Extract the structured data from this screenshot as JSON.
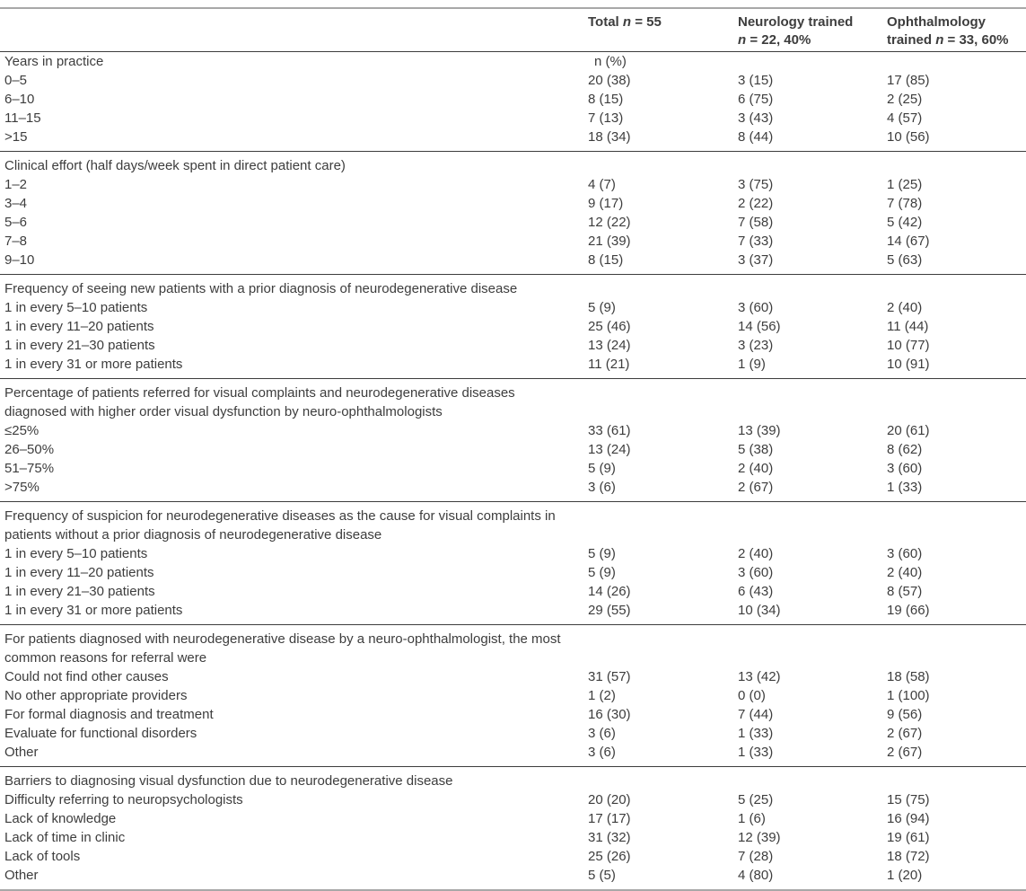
{
  "colors": {
    "text": "#3d3d3d",
    "rule_dark": "#3d3d3d",
    "rule_light": "#a8a8a8",
    "background": "#ffffff"
  },
  "table": {
    "columns": [
      {
        "name": "total",
        "lines": [
          [
            {
              "t": "Total ",
              "i": 0
            },
            {
              "t": "n",
              "i": 1
            },
            {
              "t": " = 55",
              "i": 0
            }
          ]
        ]
      },
      {
        "name": "neurology",
        "lines": [
          [
            {
              "t": "Neurology trained",
              "i": 0
            }
          ],
          [
            {
              "t": "n",
              "i": 1
            },
            {
              "t": " = 22, 40%",
              "i": 0
            }
          ]
        ]
      },
      {
        "name": "ophthalmology",
        "lines": [
          [
            {
              "t": "Ophthalmology",
              "i": 0
            }
          ],
          [
            {
              "t": "trained ",
              "i": 0
            },
            {
              "t": "n",
              "i": 1
            },
            {
              "t": " = 33, 60%",
              "i": 0
            }
          ]
        ]
      }
    ],
    "sections": [
      {
        "header_lines": [
          "Years in practice"
        ],
        "header_values": [
          "n (%)",
          "",
          ""
        ],
        "rows": [
          {
            "label": "0–5",
            "values": [
              "20 (38)",
              "3 (15)",
              "17 (85)"
            ]
          },
          {
            "label": "6–10",
            "values": [
              "8 (15)",
              "6 (75)",
              "2 (25)"
            ]
          },
          {
            "label": "11–15",
            "values": [
              "7 (13)",
              "3 (43)",
              "4 (57)"
            ]
          },
          {
            "label": ">15",
            "values": [
              "18 (34)",
              "8 (44)",
              "10 (56)"
            ]
          }
        ]
      },
      {
        "header_lines": [
          "Clinical effort (half days/week spent in direct patient care)"
        ],
        "header_values": [
          "",
          "",
          ""
        ],
        "rows": [
          {
            "label": "1–2",
            "values": [
              "4 (7)",
              "3 (75)",
              "1 (25)"
            ]
          },
          {
            "label": "3–4",
            "values": [
              "9 (17)",
              "2 (22)",
              "7 (78)"
            ]
          },
          {
            "label": "5–6",
            "values": [
              "12 (22)",
              "7 (58)",
              "5 (42)"
            ]
          },
          {
            "label": "7–8",
            "values": [
              "21 (39)",
              "7 (33)",
              "14 (67)"
            ]
          },
          {
            "label": "9–10",
            "values": [
              "8 (15)",
              "3 (37)",
              "5 (63)"
            ]
          }
        ]
      },
      {
        "header_lines": [
          "Frequency of seeing new patients with a prior diagnosis of neurodegenerative disease"
        ],
        "header_values": [
          "",
          "",
          ""
        ],
        "rows": [
          {
            "label": "1 in every 5–10 patients",
            "values": [
              "5 (9)",
              "3 (60)",
              "2 (40)"
            ]
          },
          {
            "label": "1 in every 11–20 patients",
            "values": [
              "25 (46)",
              "14 (56)",
              "11 (44)"
            ]
          },
          {
            "label": "1 in every 21–30 patients",
            "values": [
              "13 (24)",
              "3 (23)",
              "10 (77)"
            ]
          },
          {
            "label": "1 in every 31 or more patients",
            "values": [
              "11 (21)",
              "1 (9)",
              "10 (91)"
            ]
          }
        ]
      },
      {
        "header_lines": [
          "Percentage of patients referred for visual complaints and neurodegenerative diseases",
          "diagnosed with higher order visual dysfunction by neuro-ophthalmologists"
        ],
        "header_values": [
          "",
          "",
          ""
        ],
        "rows": [
          {
            "label": "≤25%",
            "values": [
              "33 (61)",
              "13 (39)",
              "20 (61)"
            ]
          },
          {
            "label": "26–50%",
            "values": [
              "13 (24)",
              "5 (38)",
              "8 (62)"
            ]
          },
          {
            "label": "51–75%",
            "values": [
              "5 (9)",
              "2 (40)",
              "3 (60)"
            ]
          },
          {
            "label": ">75%",
            "values": [
              "3 (6)",
              "2 (67)",
              "1 (33)"
            ]
          }
        ]
      },
      {
        "header_lines": [
          "Frequency of suspicion for neurodegenerative diseases as the cause for visual complaints in",
          "patients without a prior diagnosis of neurodegenerative disease"
        ],
        "header_values": [
          "",
          "",
          ""
        ],
        "rows": [
          {
            "label": "1 in every 5–10 patients",
            "values": [
              "5 (9)",
              "2 (40)",
              "3 (60)"
            ]
          },
          {
            "label": "1 in every 11–20 patients",
            "values": [
              "5 (9)",
              "3 (60)",
              "2 (40)"
            ]
          },
          {
            "label": "1 in every 21–30 patients",
            "values": [
              "14 (26)",
              "6 (43)",
              "8 (57)"
            ]
          },
          {
            "label": "1 in every 31 or more patients",
            "values": [
              "29 (55)",
              "10 (34)",
              "19 (66)"
            ]
          }
        ]
      },
      {
        "header_lines": [
          "For patients diagnosed with neurodegenerative disease by a neuro-ophthalmologist, the most",
          "common reasons for referral were"
        ],
        "header_values": [
          "",
          "",
          ""
        ],
        "rows": [
          {
            "label": "Could not find other causes",
            "values": [
              "31 (57)",
              "13 (42)",
              "18 (58)"
            ]
          },
          {
            "label": "No other appropriate providers",
            "values": [
              "1 (2)",
              "0 (0)",
              "1 (100)"
            ]
          },
          {
            "label": "For formal diagnosis and treatment",
            "values": [
              "16 (30)",
              "7 (44)",
              "9 (56)"
            ]
          },
          {
            "label": "Evaluate for functional disorders",
            "values": [
              "3 (6)",
              "1 (33)",
              "2 (67)"
            ]
          },
          {
            "label": "Other",
            "values": [
              "3 (6)",
              "1 (33)",
              "2 (67)"
            ]
          }
        ]
      },
      {
        "header_lines": [
          "Barriers to diagnosing visual dysfunction due to neurodegenerative disease"
        ],
        "header_values": [
          "",
          "",
          ""
        ],
        "rows": [
          {
            "label": "Difficulty referring to neuropsychologists",
            "values": [
              "20 (20)",
              "5 (25)",
              "15 (75)"
            ]
          },
          {
            "label": "Lack of knowledge",
            "values": [
              "17 (17)",
              "1 (6)",
              "16 (94)"
            ]
          },
          {
            "label": "Lack of time in clinic",
            "values": [
              "31 (32)",
              "12 (39)",
              "19 (61)"
            ]
          },
          {
            "label": "Lack of tools",
            "values": [
              "25 (26)",
              "7 (28)",
              "18 (72)"
            ]
          },
          {
            "label": "Other",
            "values": [
              "5 (5)",
              "4 (80)",
              "1 (20)"
            ]
          }
        ]
      }
    ]
  }
}
